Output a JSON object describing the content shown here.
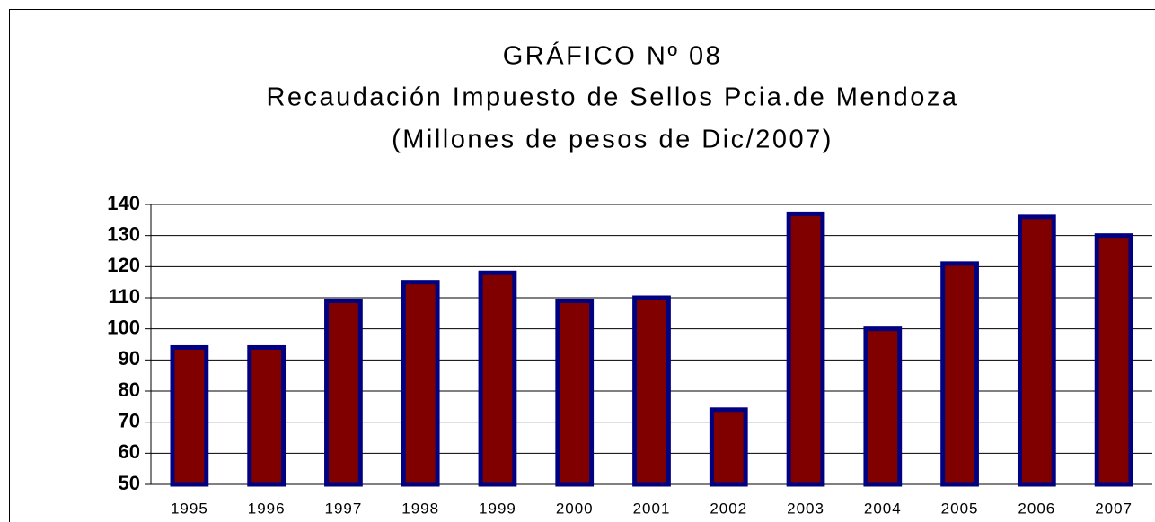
{
  "chart_data": {
    "type": "bar",
    "title_lines": [
      "GRÁFICO Nº 08",
      "Recaudación Impuesto de Sellos Pcia.de Mendoza",
      "(Millones de pesos de Dic/2007)"
    ],
    "categories": [
      "1995",
      "1996",
      "1997",
      "1998",
      "1999",
      "2000",
      "2001",
      "2002",
      "2003",
      "2004",
      "2005",
      "2006",
      "2007"
    ],
    "values": [
      94,
      94,
      109,
      115,
      118,
      109,
      110,
      74,
      137,
      100,
      121,
      136,
      130
    ],
    "color": "#800000",
    "edge_color": "#000080",
    "ylim": [
      50,
      140
    ],
    "yticks": [
      50,
      60,
      70,
      80,
      90,
      100,
      110,
      120,
      130,
      140
    ],
    "grid": true
  }
}
